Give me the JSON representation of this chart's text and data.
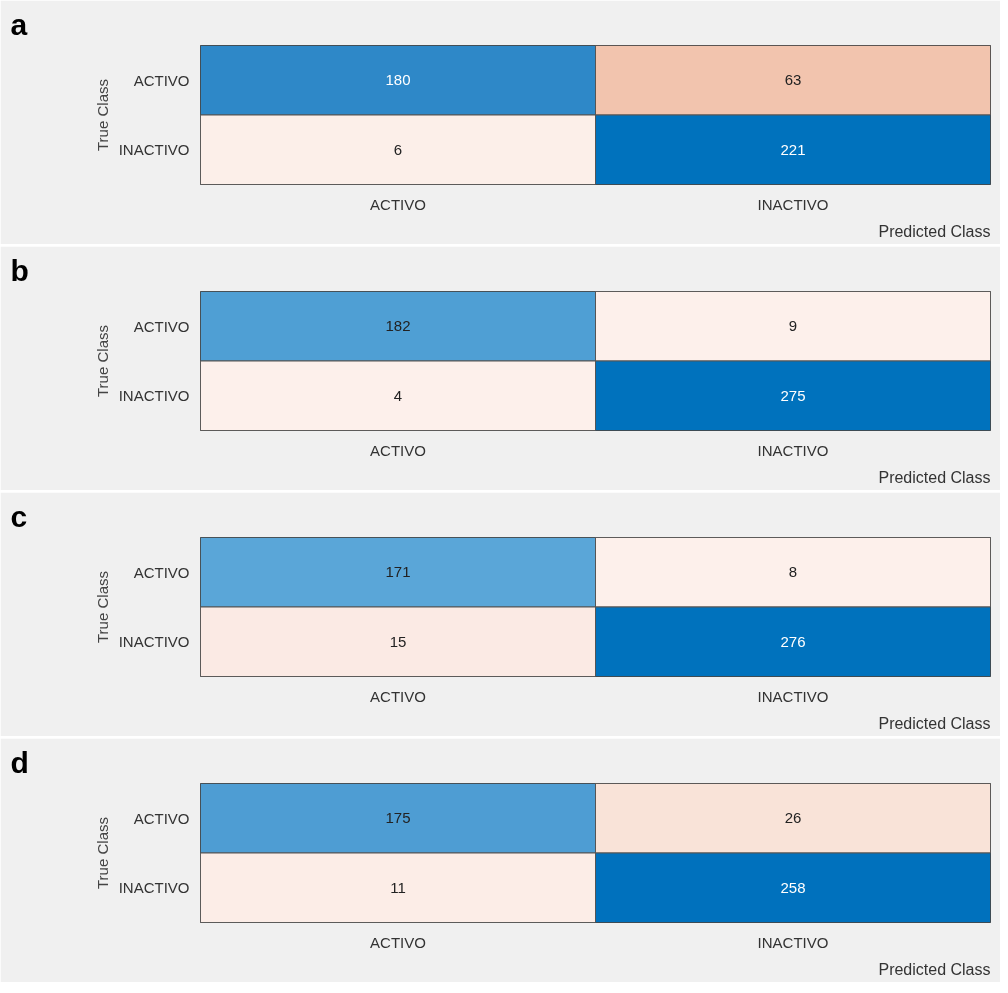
{
  "chart_data": [
    {
      "type": "heatmap",
      "data_labels": true,
      "title": "a",
      "xlabel": "Predicted Class",
      "ylabel": "True Class",
      "categories": [
        "ACTIVO",
        "INACTIVO"
      ],
      "y_categories": [
        "ACTIVO",
        "INACTIVO"
      ],
      "cells": [
        [
          180,
          63
        ],
        [
          6,
          221
        ]
      ],
      "colors": [
        [
          "#2e88c8",
          "#f2c4ae"
        ],
        [
          "#fcefe9",
          "#0072bd"
        ]
      ]
    },
    {
      "type": "heatmap",
      "data_labels": true,
      "title": "b",
      "xlabel": "Predicted Class",
      "ylabel": "True Class",
      "categories": [
        "ACTIVO",
        "INACTIVO"
      ],
      "y_categories": [
        "ACTIVO",
        "INACTIVO"
      ],
      "cells": [
        [
          182,
          9
        ],
        [
          4,
          275
        ]
      ],
      "colors": [
        [
          "#4f9fd4",
          "#fdf0eb"
        ],
        [
          "#fdf0eb",
          "#0072bd"
        ]
      ]
    },
    {
      "type": "heatmap",
      "data_labels": true,
      "title": "c",
      "xlabel": "Predicted Class",
      "ylabel": "True Class",
      "categories": [
        "ACTIVO",
        "INACTIVO"
      ],
      "y_categories": [
        "ACTIVO",
        "INACTIVO"
      ],
      "cells": [
        [
          171,
          8
        ],
        [
          15,
          276
        ]
      ],
      "colors": [
        [
          "#5aa6d8",
          "#fdf0eb"
        ],
        [
          "#fbeae4",
          "#0072bd"
        ]
      ]
    },
    {
      "type": "heatmap",
      "data_labels": true,
      "title": "d",
      "xlabel": "Predicted Class",
      "ylabel": "True Class",
      "categories": [
        "ACTIVO",
        "INACTIVO"
      ],
      "y_categories": [
        "ACTIVO",
        "INACTIVO"
      ],
      "cells": [
        [
          175,
          26
        ],
        [
          11,
          258
        ]
      ],
      "colors": [
        [
          "#4e9dd3",
          "#f9e3d8"
        ],
        [
          "#fcede7",
          "#0071bd"
        ]
      ]
    }
  ]
}
